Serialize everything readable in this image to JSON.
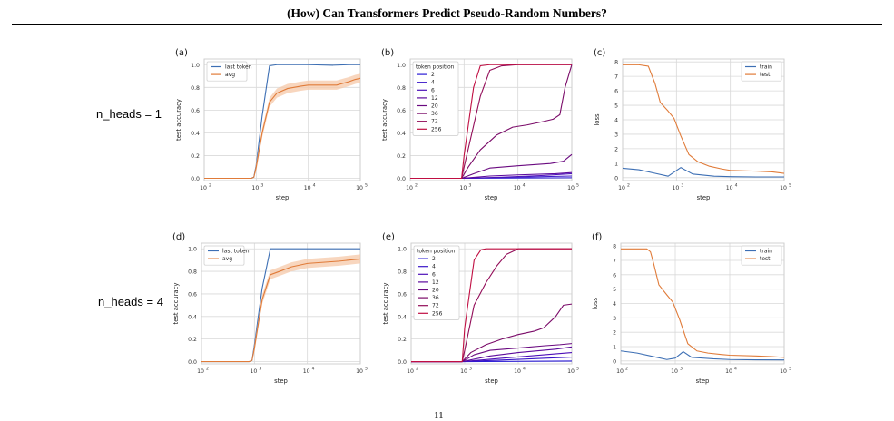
{
  "header": {
    "title": "(How) Can Transformers Predict Pseudo-Random Numbers?"
  },
  "rows": [
    {
      "label": "n_heads = 1"
    },
    {
      "label": "n_heads = 4"
    }
  ],
  "page_number": "11",
  "colors": {
    "blue": "#3d6fb4",
    "orange": "#e07b39",
    "band": "#f5c8a8",
    "grid": "#d9d9d9",
    "token_colors": [
      "#2a1bd6",
      "#3a16c8",
      "#4d10b8",
      "#5c0a9c",
      "#6a0a80",
      "#7a0a68",
      "#920c58",
      "#c00e42"
    ]
  },
  "chart_data": [
    {
      "panel": "(a)",
      "type": "line",
      "xscale": "log",
      "xlim": [
        100,
        100000
      ],
      "ylim": [
        -0.02,
        1.05
      ],
      "xticks": [
        "10",
        "10",
        "10",
        "10"
      ],
      "xtick_exponents": [
        "2",
        "3",
        "4",
        "5"
      ],
      "yticks": [
        "0.0",
        "0.2",
        "0.4",
        "0.6",
        "0.8",
        "1.0"
      ],
      "xlabel": "step",
      "ylabel": "test accuracy",
      "legend": "top-left",
      "grid": true,
      "series": [
        {
          "name": "last token",
          "color": "#3d6fb4",
          "x": [
            100,
            800,
            900,
            1000,
            1300,
            1800,
            2500,
            5000,
            10000,
            30000,
            60000,
            100000
          ],
          "y": [
            0,
            0,
            0.01,
            0.12,
            0.55,
            0.99,
            1.0,
            1.0,
            1.0,
            0.995,
            1.0,
            1.0
          ]
        },
        {
          "name": "avg",
          "color": "#e07b39",
          "band": 0.04,
          "x": [
            100,
            800,
            900,
            1000,
            1300,
            1800,
            2500,
            4000,
            7000,
            10000,
            20000,
            35000,
            60000,
            80000,
            100000
          ],
          "y": [
            0,
            0,
            0.01,
            0.1,
            0.4,
            0.67,
            0.75,
            0.79,
            0.81,
            0.82,
            0.82,
            0.82,
            0.85,
            0.87,
            0.88
          ]
        }
      ]
    },
    {
      "panel": "(b)",
      "type": "line",
      "xscale": "log",
      "xlim": [
        100,
        100000
      ],
      "ylim": [
        -0.02,
        1.05
      ],
      "xticks": [
        "10",
        "10",
        "10",
        "10"
      ],
      "xtick_exponents": [
        "2",
        "3",
        "4",
        "5"
      ],
      "yticks": [
        "0.0",
        "0.2",
        "0.4",
        "0.6",
        "0.8",
        "1.0"
      ],
      "xlabel": "step",
      "ylabel": "test accuracy",
      "legend": "top-left",
      "legend_title": "token position",
      "grid": true,
      "series": [
        {
          "name": "2",
          "x": [
            100,
            900,
            100000
          ],
          "y": [
            0,
            0,
            0.005
          ]
        },
        {
          "name": "4",
          "x": [
            100,
            900,
            10000,
            100000
          ],
          "y": [
            0,
            0,
            0.01,
            0.02
          ]
        },
        {
          "name": "6",
          "x": [
            100,
            900,
            5000,
            30000,
            100000
          ],
          "y": [
            0,
            0,
            0.01,
            0.025,
            0.04
          ]
        },
        {
          "name": "12",
          "x": [
            100,
            900,
            3000,
            10000,
            50000,
            100000
          ],
          "y": [
            0,
            0,
            0.02,
            0.03,
            0.04,
            0.05
          ]
        },
        {
          "name": "20",
          "x": [
            100,
            900,
            1500,
            3000,
            10000,
            40000,
            70000,
            100000
          ],
          "y": [
            0,
            0,
            0.04,
            0.09,
            0.11,
            0.13,
            0.15,
            0.21
          ]
        },
        {
          "name": "36",
          "x": [
            100,
            900,
            1200,
            2000,
            4000,
            8000,
            15000,
            30000,
            45000,
            60000,
            75000,
            100000
          ],
          "y": [
            0,
            0,
            0.1,
            0.25,
            0.38,
            0.45,
            0.47,
            0.5,
            0.52,
            0.56,
            0.8,
            1.0
          ]
        },
        {
          "name": "72",
          "x": [
            100,
            900,
            1000,
            2000,
            3000,
            5000,
            10000,
            100000
          ],
          "y": [
            0,
            0,
            0.1,
            0.72,
            0.95,
            0.99,
            1.0,
            1.0
          ]
        },
        {
          "name": "256",
          "x": [
            100,
            900,
            1000,
            1500,
            2000,
            3000,
            100000
          ],
          "y": [
            0,
            0,
            0.2,
            0.8,
            0.99,
            1.0,
            1.0
          ]
        }
      ]
    },
    {
      "panel": "(c)",
      "type": "line",
      "xscale": "log",
      "xlim": [
        100,
        100000
      ],
      "ylim": [
        -0.2,
        8.2
      ],
      "xticks": [
        "10",
        "10",
        "10",
        "10"
      ],
      "xtick_exponents": [
        "2",
        "3",
        "4",
        "5"
      ],
      "yticks": [
        "0",
        "1",
        "2",
        "3",
        "4",
        "5",
        "6",
        "7",
        "8"
      ],
      "xlabel": "step",
      "ylabel": "loss",
      "legend": "top-right",
      "grid": true,
      "series": [
        {
          "name": "train",
          "color": "#3d6fb4",
          "x": [
            100,
            200,
            400,
            700,
            1200,
            2000,
            5000,
            10000,
            30000,
            100000
          ],
          "y": [
            0.65,
            0.55,
            0.3,
            0.1,
            0.7,
            0.25,
            0.1,
            0.07,
            0.05,
            0.05
          ]
        },
        {
          "name": "test",
          "color": "#e07b39",
          "x": [
            100,
            200,
            300,
            400,
            500,
            700,
            900,
            1200,
            1700,
            2500,
            4000,
            7000,
            10000,
            30000,
            60000,
            100000
          ],
          "y": [
            7.8,
            7.8,
            7.7,
            6.5,
            5.2,
            4.6,
            4.1,
            2.9,
            1.6,
            1.1,
            0.8,
            0.6,
            0.5,
            0.45,
            0.4,
            0.3
          ]
        }
      ]
    },
    {
      "panel": "(d)",
      "type": "line",
      "xscale": "log",
      "xlim": [
        100,
        100000
      ],
      "ylim": [
        -0.02,
        1.05
      ],
      "xticks": [
        "10",
        "10",
        "10",
        "10"
      ],
      "xtick_exponents": [
        "2",
        "3",
        "4",
        "5"
      ],
      "yticks": [
        "0.0",
        "0.2",
        "0.4",
        "0.6",
        "0.8",
        "1.0"
      ],
      "xlabel": "step",
      "ylabel": "test accuracy",
      "legend": "top-left",
      "grid": true,
      "series": [
        {
          "name": "last token",
          "color": "#3d6fb4",
          "x": [
            100,
            800,
            900,
            1000,
            1400,
            2000,
            5000,
            100000
          ],
          "y": [
            0,
            0,
            0.01,
            0.15,
            0.65,
            1.0,
            1.0,
            1.0
          ]
        },
        {
          "name": "avg",
          "color": "#e07b39",
          "band": 0.04,
          "x": [
            100,
            800,
            900,
            1000,
            1400,
            2000,
            3000,
            5000,
            10000,
            20000,
            40000,
            100000
          ],
          "y": [
            0,
            0,
            0.01,
            0.12,
            0.55,
            0.77,
            0.8,
            0.84,
            0.87,
            0.88,
            0.89,
            0.91
          ]
        }
      ]
    },
    {
      "panel": "(e)",
      "type": "line",
      "xscale": "log",
      "xlim": [
        100,
        100000
      ],
      "ylim": [
        -0.02,
        1.05
      ],
      "xticks": [
        "10",
        "10",
        "10",
        "10"
      ],
      "xtick_exponents": [
        "2",
        "3",
        "4",
        "5"
      ],
      "yticks": [
        "0.0",
        "0.2",
        "0.4",
        "0.6",
        "0.8",
        "1.0"
      ],
      "xlabel": "step",
      "ylabel": "test accuracy",
      "legend": "top-left",
      "legend_title": "token position",
      "grid": true,
      "series": [
        {
          "name": "2",
          "x": [
            100,
            900,
            100000
          ],
          "y": [
            0,
            0,
            0.005
          ]
        },
        {
          "name": "4",
          "x": [
            100,
            900,
            10000,
            100000
          ],
          "y": [
            0,
            0,
            0.02,
            0.04
          ]
        },
        {
          "name": "6",
          "x": [
            100,
            900,
            5000,
            30000,
            100000
          ],
          "y": [
            0,
            0,
            0.03,
            0.06,
            0.08
          ]
        },
        {
          "name": "12",
          "x": [
            100,
            900,
            3000,
            10000,
            50000,
            100000
          ],
          "y": [
            0,
            0,
            0.05,
            0.08,
            0.11,
            0.13
          ]
        },
        {
          "name": "20",
          "x": [
            100,
            900,
            1500,
            3000,
            10000,
            30000,
            60000,
            100000
          ],
          "y": [
            0,
            0,
            0.06,
            0.1,
            0.12,
            0.14,
            0.15,
            0.16
          ]
        },
        {
          "name": "36",
          "x": [
            100,
            900,
            1300,
            2500,
            5000,
            10000,
            20000,
            30000,
            50000,
            70000,
            100000
          ],
          "y": [
            0,
            0,
            0.08,
            0.15,
            0.2,
            0.24,
            0.27,
            0.3,
            0.4,
            0.5,
            0.51
          ]
        },
        {
          "name": "72",
          "x": [
            100,
            900,
            1000,
            1500,
            2500,
            4000,
            6000,
            10000,
            100000
          ],
          "y": [
            0,
            0,
            0.1,
            0.5,
            0.7,
            0.85,
            0.95,
            1.0,
            1.0
          ]
        },
        {
          "name": "256",
          "x": [
            100,
            900,
            1000,
            1500,
            2000,
            2500,
            100000
          ],
          "y": [
            0,
            0,
            0.3,
            0.9,
            0.99,
            1.0,
            1.0
          ]
        }
      ]
    },
    {
      "panel": "(f)",
      "type": "line",
      "xscale": "log",
      "xlim": [
        100,
        100000
      ],
      "ylim": [
        -0.2,
        8.2
      ],
      "xticks": [
        "10",
        "10",
        "10",
        "10"
      ],
      "xtick_exponents": [
        "2",
        "3",
        "4",
        "5"
      ],
      "yticks": [
        "0",
        "1",
        "2",
        "3",
        "4",
        "5",
        "6",
        "7",
        "8"
      ],
      "xlabel": "step",
      "ylabel": "loss",
      "legend": "top-right",
      "grid": true,
      "series": [
        {
          "name": "train",
          "color": "#3d6fb4",
          "x": [
            100,
            200,
            400,
            700,
            1000,
            1400,
            2000,
            5000,
            10000,
            30000,
            100000
          ],
          "y": [
            0.7,
            0.55,
            0.3,
            0.1,
            0.2,
            0.65,
            0.25,
            0.15,
            0.1,
            0.08,
            0.07
          ]
        },
        {
          "name": "test",
          "color": "#e07b39",
          "x": [
            100,
            200,
            300,
            350,
            400,
            500,
            700,
            900,
            1200,
            1700,
            2500,
            4000,
            7000,
            10000,
            30000,
            60000,
            100000
          ],
          "y": [
            7.8,
            7.8,
            7.8,
            7.6,
            6.8,
            5.3,
            4.6,
            4.1,
            2.9,
            1.2,
            0.7,
            0.55,
            0.45,
            0.4,
            0.35,
            0.3,
            0.25
          ]
        }
      ]
    }
  ]
}
